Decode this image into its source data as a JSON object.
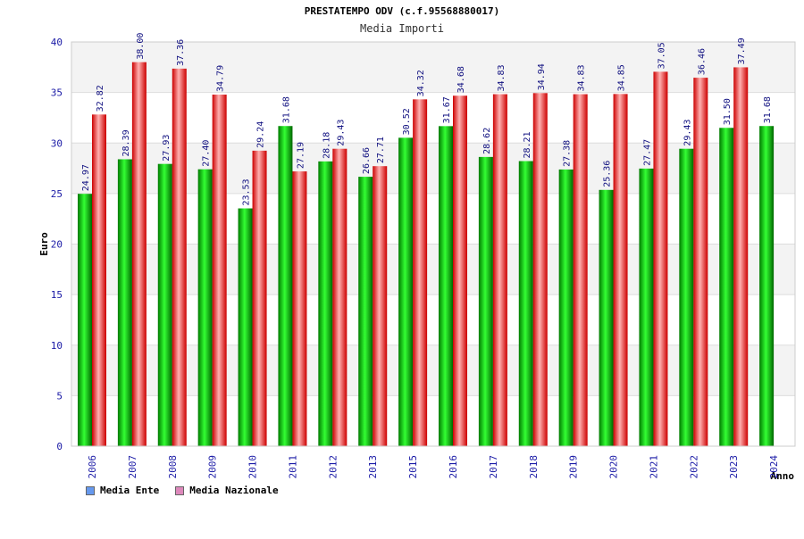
{
  "chart_data": {
    "type": "bar",
    "title": "PRESTATEMPO ODV (c.f.95568880017)",
    "subtitle": "Media Importi",
    "xlabel": "Anno",
    "ylabel": "Euro",
    "ylim": [
      0,
      40
    ],
    "yticks": [
      0,
      5,
      10,
      15,
      20,
      25,
      30,
      35,
      40
    ],
    "categories": [
      "2006",
      "2007",
      "2008",
      "2009",
      "2010",
      "2011",
      "2012",
      "2013",
      "2015",
      "2016",
      "2017",
      "2018",
      "2019",
      "2020",
      "2021",
      "2022",
      "2023",
      "2024"
    ],
    "series": [
      {
        "name": "Media Ente",
        "color": "#00b000",
        "values": [
          24.97,
          28.39,
          27.93,
          27.4,
          23.53,
          31.68,
          28.18,
          26.66,
          30.52,
          31.67,
          28.62,
          28.21,
          27.38,
          25.36,
          27.47,
          29.43,
          31.5,
          31.68
        ],
        "labels": [
          "24.97",
          "28.39",
          "27.93",
          "27.40",
          "23.53",
          "31.68",
          "28.18",
          "26.66",
          "30.52",
          "31.67",
          "28.62",
          "28.21",
          "27.38",
          "25.36",
          "27.47",
          "29.43",
          "31.50",
          "31.68"
        ]
      },
      {
        "name": "Media Nazionale",
        "color": "#e81c1c",
        "values": [
          32.82,
          38.0,
          37.36,
          34.79,
          29.24,
          27.19,
          29.43,
          27.71,
          34.32,
          34.68,
          34.83,
          34.94,
          34.83,
          34.85,
          37.05,
          36.46,
          37.49,
          null
        ],
        "labels": [
          "32.82",
          "38.00",
          "37.36",
          "34.79",
          "29.24",
          "27.19",
          "29.43",
          "27.71",
          "34.32",
          "34.68",
          "34.83",
          "34.94",
          "34.83",
          "34.85",
          "37.05",
          "36.46",
          "37.49",
          ""
        ]
      }
    ],
    "legend": [
      {
        "label": "Media Ente",
        "color": "#6699ee"
      },
      {
        "label": "Media Nazionale",
        "color": "#dd88bb"
      }
    ],
    "grid": true,
    "legend_position": "bottom-left"
  }
}
